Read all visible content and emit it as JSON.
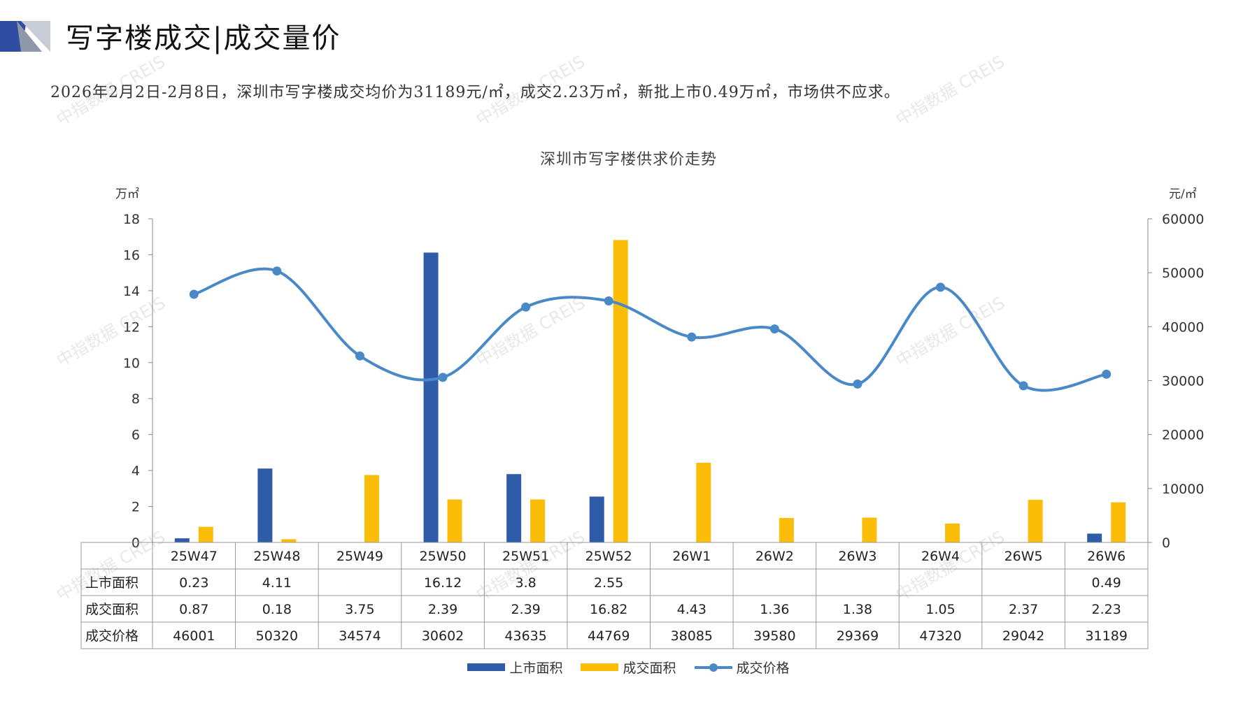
{
  "header": {
    "title": "写字楼成交|成交量价",
    "summary": "2026年2月2日-2月8日，深圳市写字楼成交均价为31189元/㎡，成交2.23万㎡，新批上市0.49万㎡，市场供不应求。"
  },
  "watermark": "中指数据 CREIS",
  "colors": {
    "supply": "#2f5ca8",
    "deal_area": "#fbbd08",
    "price": "#4a89c8",
    "logo_dark": "#2f4ea1"
  },
  "chart_data": {
    "type": "bar",
    "title": "深圳市写字楼供求价走势",
    "y_left_unit": "万㎡",
    "y_right_unit": "元/㎡",
    "y_left_range": [
      0,
      18
    ],
    "y_left_ticks": [
      "0",
      "2",
      "4",
      "6",
      "8",
      "10",
      "12",
      "14",
      "16",
      "18"
    ],
    "y_right_range": [
      0,
      60000
    ],
    "y_right_ticks": [
      "0",
      "10000",
      "20000",
      "30000",
      "40000",
      "50000",
      "60000"
    ],
    "categories": [
      "25W47",
      "25W48",
      "25W49",
      "25W50",
      "25W51",
      "25W52",
      "26W1",
      "26W2",
      "26W3",
      "26W4",
      "26W5",
      "26W6"
    ],
    "series": [
      {
        "name": "上市面积",
        "kind": "bar",
        "axis": "left",
        "values": [
          0.23,
          4.11,
          null,
          16.12,
          3.8,
          2.55,
          null,
          null,
          null,
          null,
          null,
          0.49
        ],
        "labels": [
          "0.23",
          "4.11",
          "",
          "16.12",
          "3.8",
          "2.55",
          "",
          "",
          "",
          "",
          "",
          "0.49"
        ]
      },
      {
        "name": "成交面积",
        "kind": "bar",
        "axis": "left",
        "values": [
          0.87,
          0.18,
          3.75,
          2.39,
          2.39,
          16.82,
          4.43,
          1.36,
          1.38,
          1.05,
          2.37,
          2.23
        ],
        "labels": [
          "0.87",
          "0.18",
          "3.75",
          "2.39",
          "2.39",
          "16.82",
          "4.43",
          "1.36",
          "1.38",
          "1.05",
          "2.37",
          "2.23"
        ]
      },
      {
        "name": "成交价格",
        "kind": "line",
        "axis": "right",
        "values": [
          46001,
          50320,
          34574,
          30602,
          43635,
          44769,
          38085,
          39580,
          29369,
          47320,
          29042,
          31189
        ],
        "labels": [
          "46001",
          "50320",
          "34574",
          "30602",
          "43635",
          "44769",
          "38085",
          "39580",
          "29369",
          "47320",
          "29042",
          "31189"
        ]
      }
    ],
    "legend_position": "bottom",
    "data_table": true,
    "grid": false
  }
}
